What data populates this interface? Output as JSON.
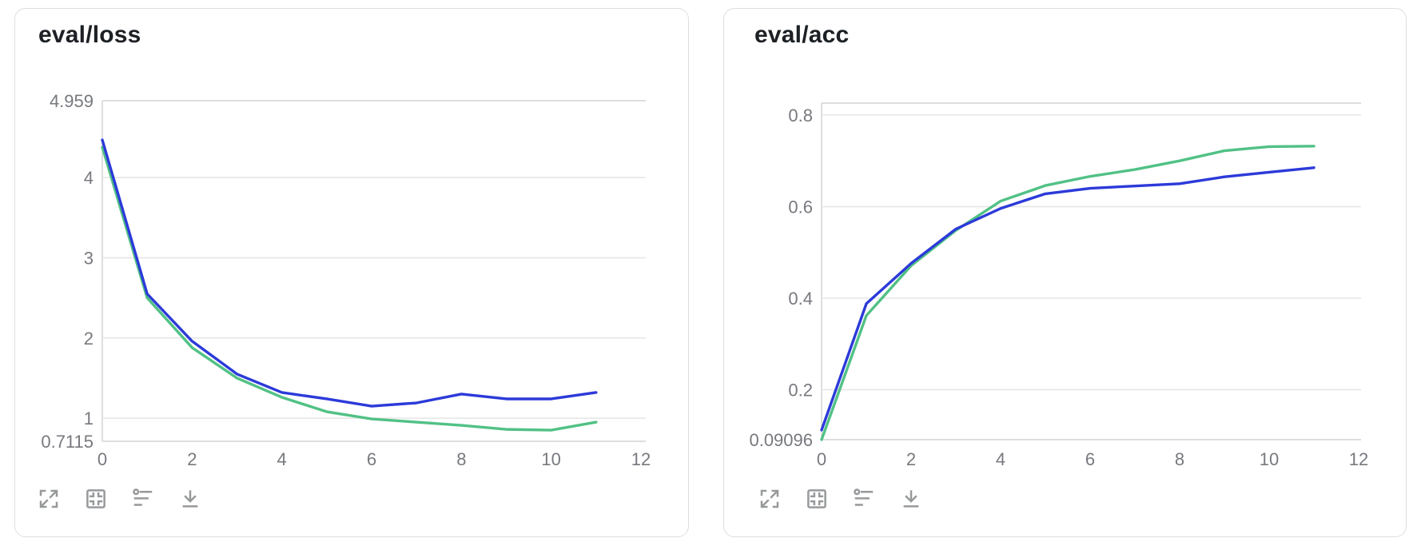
{
  "toolbar": {
    "icons": [
      "fullscreen-icon",
      "fit-panel-icon",
      "filter-settings-icon",
      "download-icon"
    ]
  },
  "colors": {
    "blue_run": "#2c3ad9",
    "green_run": "#51c185",
    "gridline": "#e5e5e5",
    "frame": "#d4d4d6",
    "label": "#77797e",
    "title": "#1d2024",
    "icon": "#97999b",
    "card_border": "#dedede"
  },
  "chart_data": [
    {
      "type": "line",
      "title": "eval/loss",
      "x": [
        0,
        1,
        2,
        3,
        4,
        5,
        6,
        7,
        8,
        9,
        10,
        11
      ],
      "series": [
        {
          "name": "blue-run",
          "color": "#2c3ad9",
          "values": [
            4.47,
            2.55,
            1.96,
            1.55,
            1.32,
            1.24,
            1.15,
            1.19,
            1.3,
            1.24,
            1.24,
            1.32
          ]
        },
        {
          "name": "green-run",
          "color": "#51c185",
          "values": [
            4.38,
            2.5,
            1.88,
            1.5,
            1.26,
            1.08,
            0.99,
            0.95,
            0.91,
            0.86,
            0.85,
            0.95
          ]
        }
      ],
      "xlim": [
        0,
        12
      ],
      "ylim": [
        0.7115,
        4.959
      ],
      "x_ticks": [
        0,
        2,
        4,
        6,
        8,
        10,
        12
      ],
      "y_ticks": [
        {
          "value": 4.959,
          "label": "4.959"
        },
        {
          "value": 4,
          "label": "4"
        },
        {
          "value": 3,
          "label": "3"
        },
        {
          "value": 2,
          "label": "2"
        },
        {
          "value": 1,
          "label": "1"
        },
        {
          "value": 0.7115,
          "label": "0.7115"
        }
      ],
      "grid": "horizontal",
      "legend": "none"
    },
    {
      "type": "line",
      "title": "eval/acc",
      "x": [
        0,
        1,
        2,
        3,
        4,
        5,
        6,
        7,
        8,
        9,
        10,
        11
      ],
      "series": [
        {
          "name": "blue-run",
          "color": "#2c3ad9",
          "values": [
            0.112,
            0.388,
            0.476,
            0.551,
            0.596,
            0.628,
            0.64,
            0.645,
            0.65,
            0.665,
            0.675,
            0.685
          ]
        },
        {
          "name": "green-run",
          "color": "#51c185",
          "values": [
            0.091,
            0.362,
            0.471,
            0.548,
            0.612,
            0.646,
            0.666,
            0.681,
            0.7,
            0.722,
            0.731,
            0.732
          ]
        }
      ],
      "xlim": [
        0,
        12
      ],
      "ylim": [
        0.09096,
        0.826
      ],
      "x_ticks": [
        0,
        2,
        4,
        6,
        8,
        10,
        12
      ],
      "y_ticks": [
        {
          "value": 0.8,
          "label": "0.8"
        },
        {
          "value": 0.6,
          "label": "0.6"
        },
        {
          "value": 0.4,
          "label": "0.4"
        },
        {
          "value": 0.2,
          "label": "0.2"
        },
        {
          "value": 0.09096,
          "label": "0.09096"
        }
      ],
      "grid": "horizontal",
      "legend": "none"
    }
  ]
}
